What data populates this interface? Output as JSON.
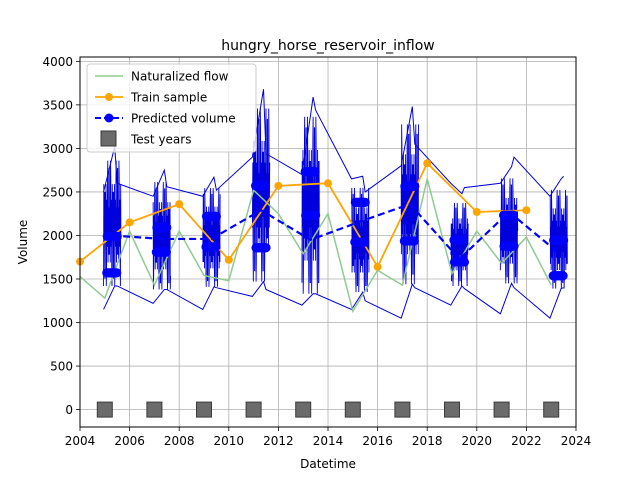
{
  "chart_data": {
    "type": "line",
    "title": "hungry_horse_reservoir_inflow",
    "xlabel": "Datetime",
    "ylabel": "Volume",
    "xlim": [
      2004,
      2024
    ],
    "ylim": [
      -200,
      4050
    ],
    "x_ticks": [
      2004,
      2006,
      2008,
      2010,
      2012,
      2014,
      2016,
      2018,
      2020,
      2022,
      2024
    ],
    "y_ticks": [
      0,
      500,
      1000,
      1500,
      2000,
      2500,
      3000,
      3500,
      4000
    ],
    "grid": true,
    "legend": {
      "placement": "top-left",
      "entries": [
        "Naturalized flow",
        "Train sample",
        "Predicted volume",
        "Test years"
      ]
    },
    "colors": {
      "naturalized": "#8fca8f",
      "train": "#ffa500",
      "predicted": "#0000ff",
      "band": "#0000dd",
      "test_years": "#6b6b6b"
    },
    "series": [
      {
        "name": "Naturalized flow",
        "x": [
          2004,
          2005,
          2006,
          2007,
          2008,
          2009,
          2010,
          2011,
          2012,
          2013,
          2014,
          2015,
          2016,
          2017,
          2018,
          2019,
          2020,
          2021,
          2022,
          2023
        ],
        "values": [
          1530,
          1280,
          2050,
          1430,
          2050,
          1540,
          1480,
          2520,
          2250,
          1790,
          2250,
          1130,
          1600,
          1430,
          2650,
          1560,
          2050,
          1680,
          1980,
          1430
        ]
      },
      {
        "name": "Train sample",
        "x": [
          2004,
          2006,
          2008,
          2010,
          2012,
          2014,
          2016,
          2018,
          2020,
          2022
        ],
        "values": [
          1700,
          2150,
          2360,
          1720,
          2570,
          2600,
          1640,
          2830,
          2270,
          2290
        ]
      },
      {
        "name": "Predicted volume",
        "x": [
          2005.3,
          2007.3,
          2009.3,
          2011.3,
          2013.3,
          2015.3,
          2017.3,
          2019.3,
          2021.3,
          2023.3
        ],
        "values": [
          2000,
          1960,
          1960,
          2290,
          1950,
          2160,
          2360,
          1730,
          2270,
          1800
        ]
      },
      {
        "name": "Test years",
        "x": [
          2005,
          2007,
          2009,
          2011,
          2013,
          2015,
          2017,
          2019,
          2021,
          2023
        ],
        "values": [
          0,
          0,
          0,
          0,
          0,
          0,
          0,
          0,
          0,
          0
        ]
      }
    ],
    "bands": {
      "upper": {
        "x": [
          2004.95,
          2005.4,
          2005.5,
          2006.95,
          2007.4,
          2007.5,
          2008.95,
          2009.4,
          2009.5,
          2010.95,
          2011.4,
          2011.5,
          2012.95,
          2013.4,
          2013.5,
          2014.95,
          2015.4,
          2015.5,
          2016.95,
          2017.4,
          2017.5,
          2018.95,
          2019.4,
          2019.5,
          2020.95,
          2021.4,
          2021.5,
          2022.95,
          2023.4,
          2023.5
        ],
        "values": [
          2500,
          3020,
          2600,
          2450,
          2750,
          2560,
          2450,
          2670,
          2520,
          2900,
          3680,
          2940,
          2700,
          3590,
          3440,
          2650,
          2680,
          2500,
          2800,
          3480,
          3050,
          2600,
          2480,
          2550,
          2600,
          2790,
          2900,
          2450,
          2650,
          2680
        ]
      },
      "lower": {
        "x": [
          2004.95,
          2005.4,
          2005.5,
          2006.95,
          2007.4,
          2007.5,
          2008.95,
          2009.4,
          2009.5,
          2010.95,
          2011.4,
          2011.5,
          2012.95,
          2013.4,
          2013.5,
          2014.95,
          2015.4,
          2015.5,
          2016.95,
          2017.4,
          2017.5,
          2018.95,
          2019.4,
          2019.5,
          2020.95,
          2021.4,
          2021.5,
          2022.95,
          2023.4,
          2023.5
        ],
        "values": [
          1150,
          1420,
          1420,
          1220,
          1380,
          1380,
          1150,
          1410,
          1400,
          1300,
          1470,
          1380,
          1200,
          1330,
          1330,
          1150,
          1350,
          1250,
          1050,
          1440,
          1400,
          1200,
          1420,
          1390,
          1100,
          1450,
          1400,
          1050,
          1390,
          1400
        ]
      }
    },
    "clusters": {
      "x_center": [
        2005.3,
        2007.3,
        2009.3,
        2011.3,
        2013.3,
        2015.3,
        2017.3,
        2019.3,
        2021.3,
        2023.3
      ],
      "y_min": [
        1570,
        1680,
        1550,
        1600,
        1820,
        1800,
        1480,
        1650,
        1650,
        1500
      ],
      "y_max": [
        2370,
        2220,
        2220,
        2960,
        2780,
        2670,
        2680,
        2130,
        2330,
        2280
      ]
    }
  }
}
